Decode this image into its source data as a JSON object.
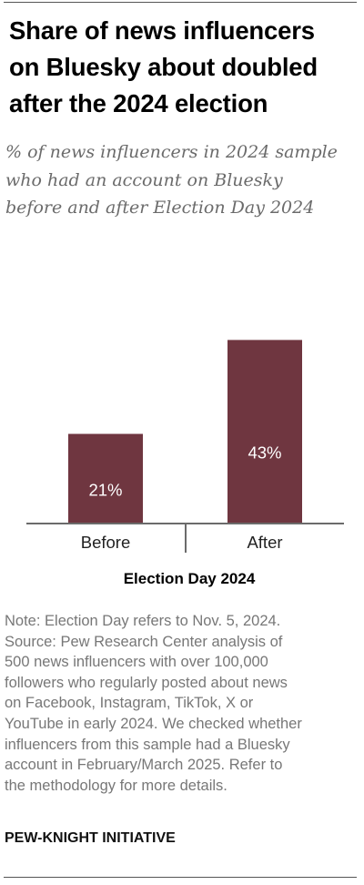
{
  "title_lines": [
    "Share of news influencers",
    "on Bluesky about doubled",
    "after the 2024 election"
  ],
  "subtitle_lines": [
    "% of news influencers in 2024 sample",
    "who had an account on Bluesky",
    "before and after Election Day 2024"
  ],
  "chart_data": {
    "type": "bar",
    "categories": [
      "Before",
      "After"
    ],
    "values": [
      21,
      43
    ],
    "value_labels": [
      "21%",
      "43%"
    ],
    "xlabel": "Election Day 2024",
    "ylabel": "",
    "ylim": [
      0,
      45
    ],
    "grid": false,
    "legend": "none",
    "bar_color": "#6f3640",
    "value_label_color": "#ffffff",
    "axis_color": "#6b6b6b"
  },
  "note_lines": [
    "Note: Election Day refers to Nov. 5, 2024.",
    "Source: Pew Research Center analysis of",
    "500 news influencers with over 100,000",
    "followers who regularly posted about news",
    "on Facebook, Instagram, TikTok, X or",
    "YouTube in early 2024. We checked whether",
    "influencers from this sample had a Bluesky",
    "account in February/March 2025. Refer to",
    "the methodology for more details."
  ],
  "brand": "PEW-KNIGHT INITIATIVE"
}
